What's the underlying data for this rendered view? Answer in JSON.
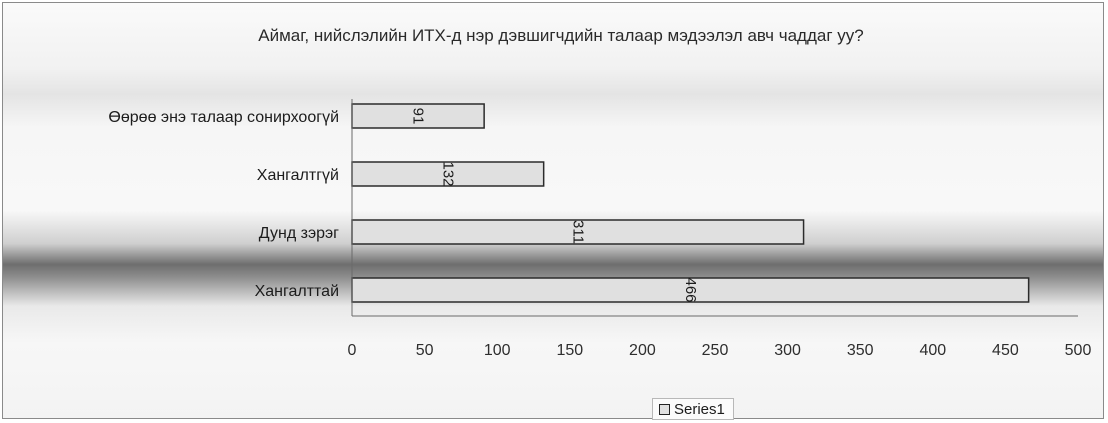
{
  "chart_data": {
    "type": "bar",
    "orientation": "horizontal",
    "title": "Аймаг, нийслэлийн ИТХ-д нэр дэвшигчдийн талаар мэдээлэл авч чаддаг уу?",
    "categories": [
      "Өөрөө энэ талаар сонирхоогүй",
      "Хангалтгүй",
      "Дунд зэрэг",
      "Хангалттай"
    ],
    "series": [
      {
        "name": "Series1",
        "values": [
          91,
          132,
          311,
          466
        ]
      }
    ],
    "xlim": [
      0,
      500
    ],
    "x_ticks": [
      0,
      50,
      100,
      150,
      200,
      250,
      300,
      350,
      400,
      450,
      500
    ],
    "data_labels": true,
    "data_label_rotation": "vertical",
    "legend_position": "bottom",
    "grid": false,
    "colors": {
      "bar_fill": "#e0e0e0",
      "bar_stroke": "#2b2b2b"
    }
  }
}
